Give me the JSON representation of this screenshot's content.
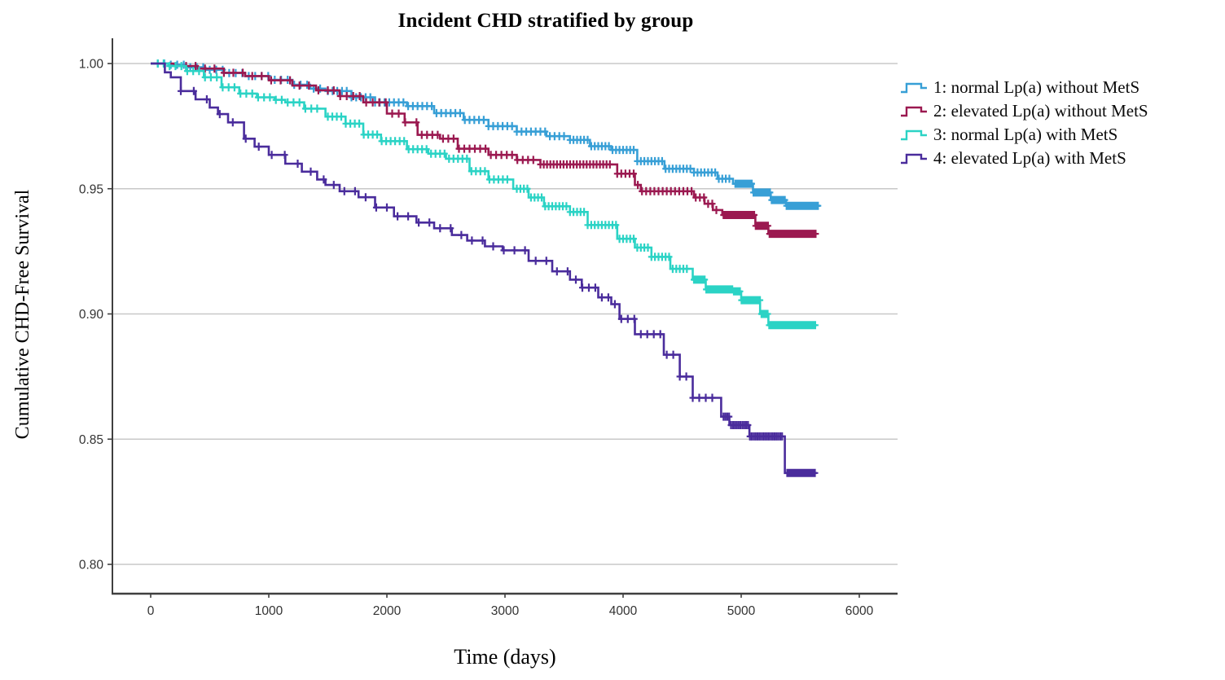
{
  "chart_data": {
    "type": "line",
    "subtype": "kaplan-meier-step-survival",
    "title": "Incident CHD stratified by group",
    "xlabel": "Time (days)",
    "ylabel": "Cumulative CHD-Free Survival",
    "xlim": [
      0,
      6000
    ],
    "ylim": [
      0.8,
      1.0
    ],
    "grid": "horizontal",
    "legend_position": "right-of-plot",
    "colors": {
      "gridline": "#c8c8c8",
      "axis": "#3f3f3f",
      "tick_text": "#333333"
    },
    "x_ticks": [
      {
        "value": 0,
        "label": "0"
      },
      {
        "value": 1000,
        "label": "1000"
      },
      {
        "value": 2000,
        "label": "2000"
      },
      {
        "value": 3000,
        "label": "3000"
      },
      {
        "value": 4000,
        "label": "4000"
      },
      {
        "value": 5000,
        "label": "5000"
      },
      {
        "value": 6000,
        "label": "6000"
      }
    ],
    "y_ticks": [
      {
        "value": 1.0,
        "label": "1.00"
      },
      {
        "value": 0.95,
        "label": "0.95"
      },
      {
        "value": 0.9,
        "label": "0.90"
      },
      {
        "value": 0.85,
        "label": "0.85"
      },
      {
        "value": 0.8,
        "label": "0.80"
      }
    ],
    "series": [
      {
        "name": "1: normal Lp(a) without MetS",
        "color": "#379fd6",
        "steps": [
          [
            0,
            1.0
          ],
          [
            150,
            0.9995
          ],
          [
            300,
            0.9985
          ],
          [
            450,
            0.9975
          ],
          [
            620,
            0.9962
          ],
          [
            800,
            0.995
          ],
          [
            1000,
            0.9935
          ],
          [
            1200,
            0.9915
          ],
          [
            1350,
            0.99
          ],
          [
            1480,
            0.989
          ],
          [
            1700,
            0.9865
          ],
          [
            1900,
            0.9845
          ],
          [
            2170,
            0.983
          ],
          [
            2400,
            0.9802
          ],
          [
            2650,
            0.9775
          ],
          [
            2860,
            0.975
          ],
          [
            3100,
            0.9728
          ],
          [
            3350,
            0.971
          ],
          [
            3550,
            0.9695
          ],
          [
            3720,
            0.967
          ],
          [
            3900,
            0.9655
          ],
          [
            4120,
            0.961
          ],
          [
            4350,
            0.958
          ],
          [
            4600,
            0.9565
          ],
          [
            4800,
            0.954
          ],
          [
            4930,
            0.952
          ],
          [
            5100,
            0.9485
          ],
          [
            5250,
            0.9455
          ],
          [
            5380,
            0.9432
          ],
          [
            5670,
            0.9432
          ]
        ],
        "censor_bands": [
          {
            "from": 60,
            "to": 1450,
            "every": 55
          },
          {
            "from": 1500,
            "to": 3500,
            "every": 40
          },
          {
            "from": 3550,
            "to": 4900,
            "every": 30
          },
          {
            "from": 4950,
            "to": 5650,
            "every": 14
          }
        ]
      },
      {
        "name": "2: elevated Lp(a) without MetS",
        "color": "#9b1950",
        "steps": [
          [
            0,
            1.0
          ],
          [
            200,
            0.999
          ],
          [
            400,
            0.998
          ],
          [
            620,
            0.9963
          ],
          [
            800,
            0.995
          ],
          [
            1000,
            0.9933
          ],
          [
            1200,
            0.9912
          ],
          [
            1400,
            0.9893
          ],
          [
            1600,
            0.987
          ],
          [
            1800,
            0.9845
          ],
          [
            2000,
            0.98
          ],
          [
            2150,
            0.9765
          ],
          [
            2260,
            0.9715
          ],
          [
            2450,
            0.97
          ],
          [
            2600,
            0.966
          ],
          [
            2860,
            0.9635
          ],
          [
            3100,
            0.9615
          ],
          [
            3300,
            0.9597
          ],
          [
            3950,
            0.956
          ],
          [
            4100,
            0.9515
          ],
          [
            4150,
            0.949
          ],
          [
            4600,
            0.9465
          ],
          [
            4690,
            0.944
          ],
          [
            4760,
            0.9415
          ],
          [
            4840,
            0.9395
          ],
          [
            5120,
            0.9352
          ],
          [
            5230,
            0.932
          ],
          [
            5640,
            0.932
          ]
        ],
        "censor_bands": [
          {
            "from": 300,
            "to": 1500,
            "every": 80
          },
          {
            "from": 1550,
            "to": 2200,
            "every": 55
          },
          {
            "from": 2250,
            "to": 3250,
            "every": 45
          },
          {
            "from": 3300,
            "to": 3900,
            "every": 28
          },
          {
            "from": 3950,
            "to": 4800,
            "every": 35
          },
          {
            "from": 4850,
            "to": 5630,
            "every": 13
          }
        ]
      },
      {
        "name": "3: normal Lp(a) with MetS",
        "color": "#2bd3c5",
        "steps": [
          [
            0,
            1.0
          ],
          [
            150,
            0.999
          ],
          [
            300,
            0.997
          ],
          [
            450,
            0.9945
          ],
          [
            600,
            0.9905
          ],
          [
            750,
            0.988
          ],
          [
            900,
            0.9865
          ],
          [
            1050,
            0.9855
          ],
          [
            1140,
            0.9845
          ],
          [
            1300,
            0.982
          ],
          [
            1480,
            0.9788
          ],
          [
            1650,
            0.976
          ],
          [
            1800,
            0.9716
          ],
          [
            1950,
            0.969
          ],
          [
            2170,
            0.9658
          ],
          [
            2350,
            0.964
          ],
          [
            2500,
            0.962
          ],
          [
            2700,
            0.957
          ],
          [
            2860,
            0.9537
          ],
          [
            3070,
            0.95
          ],
          [
            3200,
            0.9465
          ],
          [
            3330,
            0.943
          ],
          [
            3550,
            0.9407
          ],
          [
            3700,
            0.9355
          ],
          [
            3950,
            0.93
          ],
          [
            4100,
            0.9265
          ],
          [
            4240,
            0.9228
          ],
          [
            4400,
            0.918
          ],
          [
            4590,
            0.9137
          ],
          [
            4700,
            0.9098
          ],
          [
            4930,
            0.909
          ],
          [
            5000,
            0.9055
          ],
          [
            5160,
            0.9
          ],
          [
            5230,
            0.8955
          ],
          [
            5640,
            0.8955
          ]
        ],
        "censor_bands": [
          {
            "from": 60,
            "to": 1450,
            "every": 50
          },
          {
            "from": 1500,
            "to": 3050,
            "every": 38
          },
          {
            "from": 3100,
            "to": 4550,
            "every": 30
          },
          {
            "from": 4600,
            "to": 5630,
            "every": 13
          }
        ]
      },
      {
        "name": "4: elevated Lp(a) with MetS",
        "color": "#4a2c9c",
        "steps": [
          [
            0,
            1.0
          ],
          [
            120,
            0.9965
          ],
          [
            170,
            0.9945
          ],
          [
            255,
            0.989
          ],
          [
            380,
            0.9857
          ],
          [
            500,
            0.9824
          ],
          [
            570,
            0.9798
          ],
          [
            655,
            0.9765
          ],
          [
            790,
            0.97
          ],
          [
            880,
            0.9668
          ],
          [
            1000,
            0.9635
          ],
          [
            1140,
            0.96
          ],
          [
            1280,
            0.9568
          ],
          [
            1410,
            0.9537
          ],
          [
            1480,
            0.9515
          ],
          [
            1600,
            0.949
          ],
          [
            1760,
            0.9466
          ],
          [
            1900,
            0.9425
          ],
          [
            2060,
            0.939
          ],
          [
            2250,
            0.9365
          ],
          [
            2400,
            0.9342
          ],
          [
            2550,
            0.9315
          ],
          [
            2680,
            0.9293
          ],
          [
            2830,
            0.927
          ],
          [
            2980,
            0.9254
          ],
          [
            3200,
            0.9212
          ],
          [
            3400,
            0.917
          ],
          [
            3550,
            0.9137
          ],
          [
            3650,
            0.9105
          ],
          [
            3790,
            0.9066
          ],
          [
            3900,
            0.9039
          ],
          [
            3970,
            0.898
          ],
          [
            4100,
            0.8919
          ],
          [
            4345,
            0.8837
          ],
          [
            4480,
            0.875
          ],
          [
            4590,
            0.8665
          ],
          [
            4830,
            0.859
          ],
          [
            4900,
            0.8556
          ],
          [
            5070,
            0.8511
          ],
          [
            5370,
            0.8365
          ],
          [
            5640,
            0.8365
          ]
        ],
        "censor_bands": [
          {
            "from": 255,
            "to": 1480,
            "every": 110
          },
          {
            "from": 1550,
            "to": 3550,
            "every": 90
          },
          {
            "from": 3600,
            "to": 4800,
            "every": 55
          },
          {
            "from": 4850,
            "to": 5360,
            "every": 16
          },
          {
            "from": 5390,
            "to": 5630,
            "every": 13
          }
        ]
      }
    ]
  }
}
